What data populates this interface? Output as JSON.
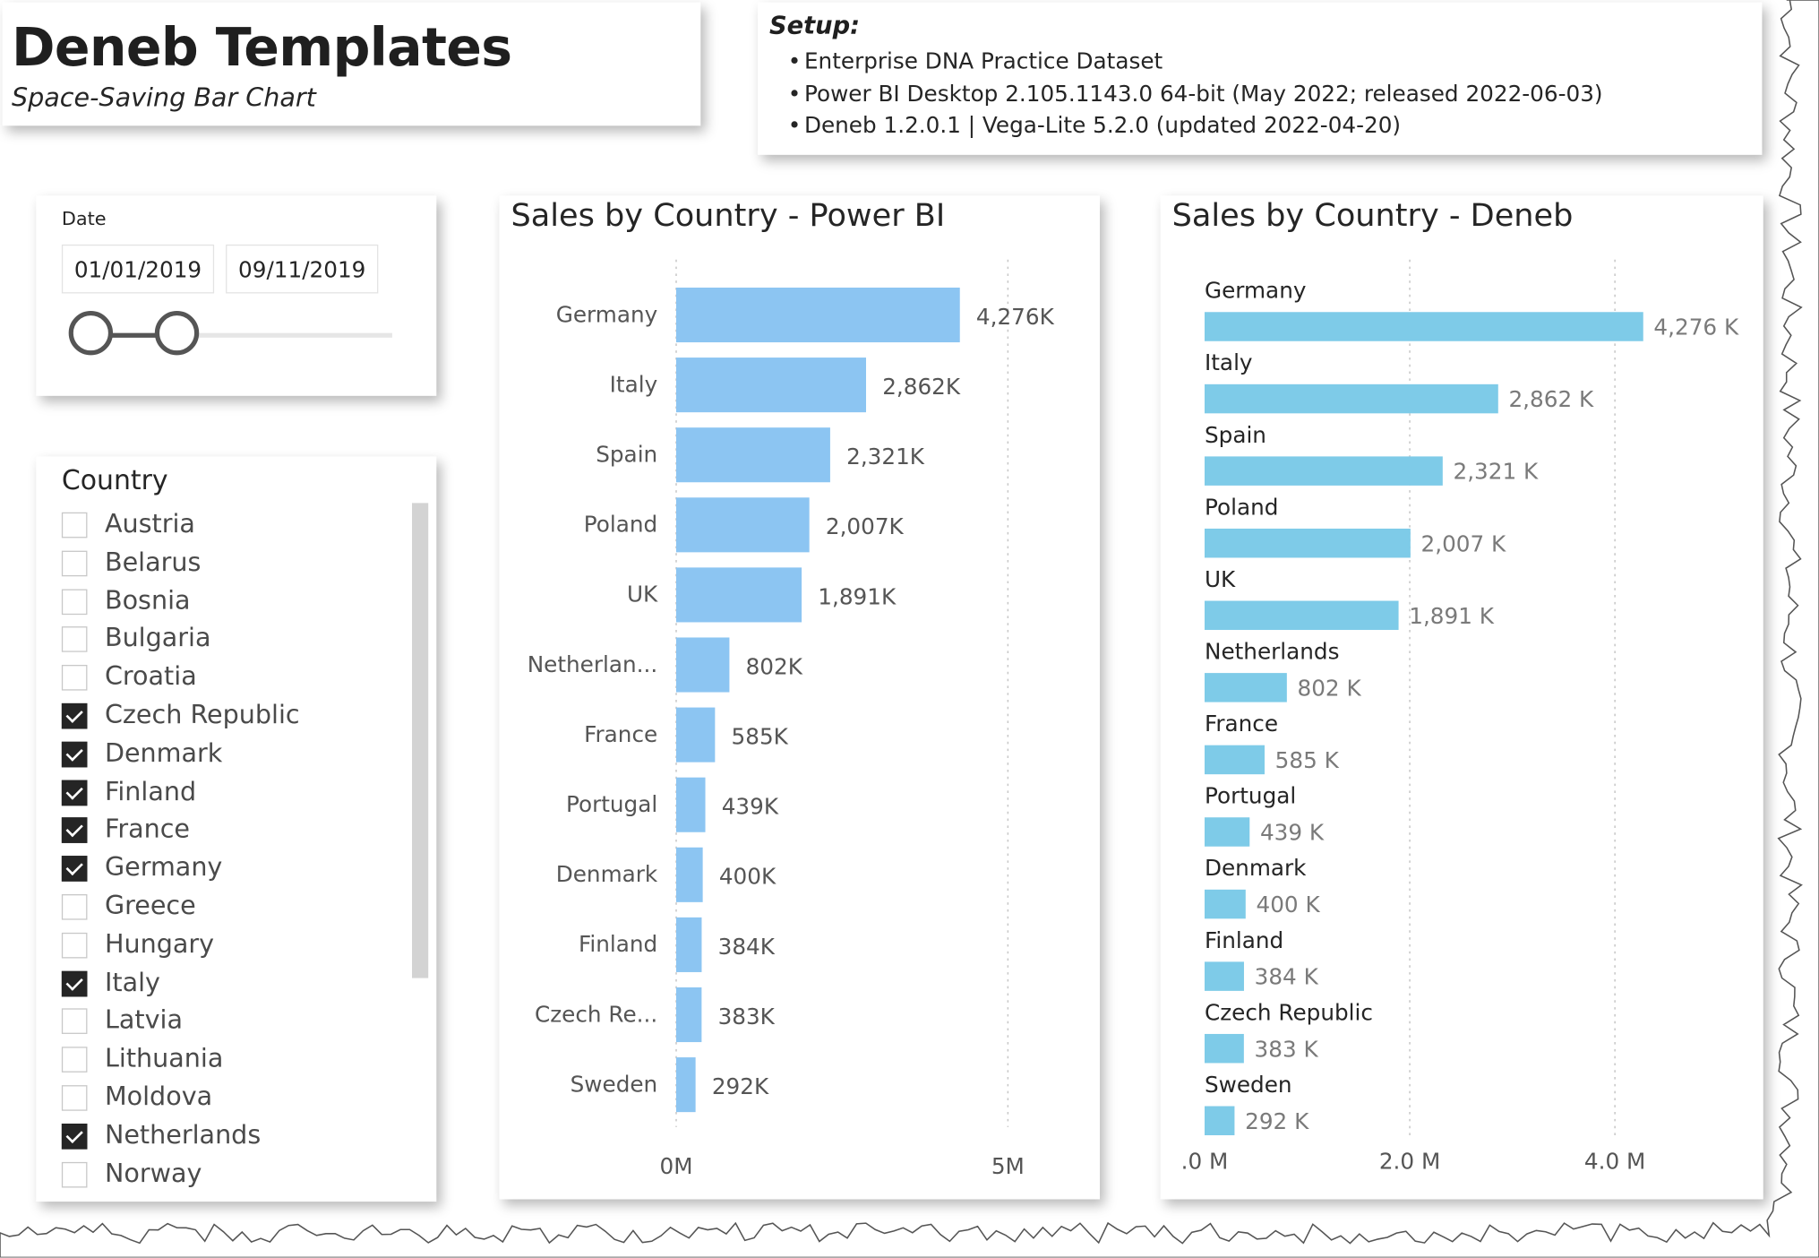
{
  "header": {
    "title": "Deneb Templates",
    "subtitle": "Space-Saving Bar Chart"
  },
  "setup": {
    "heading": "Setup:",
    "items": [
      "Enterprise DNA Practice Dataset",
      "Power BI Desktop 2.105.1143.0 64-bit (May 2022; released 2022-06-03)",
      "Deneb 1.2.0.1 | Vega-Lite 5.2.0 (updated 2022-04-20)"
    ],
    "bullet": "•"
  },
  "date_slicer": {
    "title": "Date",
    "start": "01/01/2019",
    "end": "09/11/2019",
    "range_position": [
      0,
      0.29
    ]
  },
  "country_slicer": {
    "title": "Country",
    "items": [
      {
        "label": "Austria",
        "checked": false
      },
      {
        "label": "Belarus",
        "checked": false
      },
      {
        "label": "Bosnia",
        "checked": false
      },
      {
        "label": "Bulgaria",
        "checked": false
      },
      {
        "label": "Croatia",
        "checked": false
      },
      {
        "label": "Czech Republic",
        "checked": true
      },
      {
        "label": "Denmark",
        "checked": true
      },
      {
        "label": "Finland",
        "checked": true
      },
      {
        "label": "France",
        "checked": true
      },
      {
        "label": "Germany",
        "checked": true
      },
      {
        "label": "Greece",
        "checked": false
      },
      {
        "label": "Hungary",
        "checked": false
      },
      {
        "label": "Italy",
        "checked": true
      },
      {
        "label": "Latvia",
        "checked": false
      },
      {
        "label": "Lithuania",
        "checked": false
      },
      {
        "label": "Moldova",
        "checked": false
      },
      {
        "label": "Netherlands",
        "checked": true
      },
      {
        "label": "Norway",
        "checked": false
      }
    ]
  },
  "chart_data": [
    {
      "type": "bar",
      "orientation": "horizontal",
      "title": "Sales by Country - Power BI",
      "categories": [
        "Germany",
        "Italy",
        "Spain",
        "Poland",
        "UK",
        "Netherlan...",
        "France",
        "Portugal",
        "Denmark",
        "Finland",
        "Czech Re...",
        "Sweden"
      ],
      "values": [
        4276,
        2862,
        2321,
        2007,
        1891,
        802,
        585,
        439,
        400,
        384,
        383,
        292
      ],
      "value_unit": "K",
      "data_labels": [
        "4,276K",
        "2,862K",
        "2,321K",
        "2,007K",
        "1,891K",
        "802K",
        "585K",
        "439K",
        "400K",
        "384K",
        "383K",
        "292K"
      ],
      "xlim": [
        0,
        5000
      ],
      "x_ticks": [
        0,
        5000
      ],
      "x_tick_labels": [
        "0M",
        "5M"
      ],
      "grid": "vertical dotted",
      "color": "#8cc5f2"
    },
    {
      "type": "bar",
      "orientation": "horizontal",
      "title": "Sales by Country - Deneb",
      "categories": [
        "Germany",
        "Italy",
        "Spain",
        "Poland",
        "UK",
        "Netherlands",
        "France",
        "Portugal",
        "Denmark",
        "Finland",
        "Czech Republic",
        "Sweden"
      ],
      "values": [
        4276,
        2862,
        2321,
        2007,
        1891,
        802,
        585,
        439,
        400,
        384,
        383,
        292
      ],
      "value_unit": "K",
      "data_labels": [
        "4,276 K",
        "2,862 K",
        "2,321 K",
        "2,007 K",
        "1,891 K",
        "802 K",
        "585 K",
        "439 K",
        "400 K",
        "384 K",
        "383 K",
        "292 K"
      ],
      "xlim": [
        0,
        4300
      ],
      "x_ticks": [
        0,
        2000,
        4000
      ],
      "x_tick_labels": [
        ".0 M",
        "2.0 M",
        "4.0 M"
      ],
      "grid": "vertical dotted",
      "label_placement": "above bar",
      "color": "#7ecbe8"
    }
  ]
}
